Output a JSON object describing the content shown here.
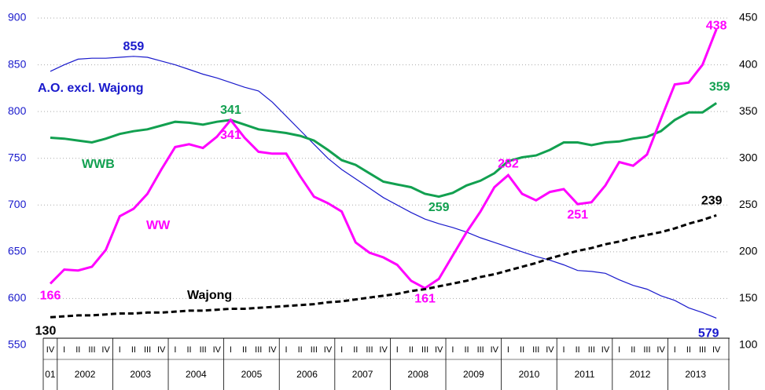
{
  "chart_data": {
    "type": "line",
    "categories": [
      "IV",
      "I",
      "II",
      "III",
      "IV",
      "I",
      "II",
      "III",
      "IV",
      "I",
      "II",
      "III",
      "IV",
      "I",
      "II",
      "III",
      "IV",
      "I",
      "II",
      "III",
      "IV",
      "I",
      "II",
      "III",
      "IV",
      "I",
      "II",
      "III",
      "IV",
      "I",
      "II",
      "III",
      "IV",
      "I",
      "II",
      "III",
      "IV",
      "I",
      "II",
      "III",
      "IV",
      "I",
      "II",
      "III",
      "IV",
      "I",
      "II",
      "III",
      "IV"
    ],
    "year_labels": [
      "01",
      "2002",
      "2003",
      "2004",
      "2005",
      "2006",
      "2007",
      "2008",
      "2009",
      "2010",
      "2011",
      "2012",
      "2013"
    ],
    "ylim": [
      550,
      900
    ],
    "yticks": [
      550,
      600,
      650,
      700,
      750,
      800,
      850,
      900
    ],
    "y2lim": [
      100,
      450
    ],
    "y2ticks": [
      100,
      150,
      200,
      250,
      300,
      350,
      400,
      450
    ],
    "grid": true,
    "series": [
      {
        "name": "A.O. excl. Wajong",
        "color": "#1a1acc",
        "axis": "y",
        "values": [
          843,
          850,
          856,
          857,
          857,
          858,
          859,
          858,
          854,
          850,
          845,
          840,
          836,
          831,
          826,
          822,
          810,
          795,
          780,
          765,
          750,
          738,
          728,
          718,
          708,
          700,
          692,
          685,
          680,
          676,
          671,
          665,
          660,
          655,
          650,
          645,
          641,
          636,
          630,
          629,
          627,
          620,
          614,
          610,
          603,
          598,
          590,
          585,
          579
        ]
      },
      {
        "name": "WWB",
        "color": "#12a050",
        "axis": "y2",
        "values": [
          322,
          321,
          319,
          317,
          321,
          326,
          329,
          331,
          335,
          339,
          338,
          336,
          339,
          341,
          336,
          331,
          329,
          327,
          324,
          319,
          309,
          298,
          293,
          284,
          275,
          272,
          269,
          262,
          259,
          263,
          271,
          276,
          284,
          297,
          301,
          303,
          309,
          317,
          317,
          314,
          317,
          318,
          321,
          323,
          329,
          341,
          349,
          349,
          359
        ]
      },
      {
        "name": "WW",
        "color": "#ff00ff",
        "axis": "y2",
        "values": [
          166,
          181,
          180,
          184,
          202,
          238,
          246,
          262,
          288,
          312,
          315,
          311,
          323,
          341,
          322,
          307,
          305,
          305,
          281,
          259,
          252,
          243,
          210,
          199,
          194,
          186,
          169,
          161,
          171,
          196,
          221,
          243,
          269,
          282,
          262,
          255,
          264,
          267,
          251,
          253,
          271,
          296,
          292,
          304,
          342,
          379,
          381,
          400,
          438
        ]
      },
      {
        "name": "Wajong",
        "color": "#000000",
        "axis": "y2",
        "dashed": true,
        "values": [
          130,
          131,
          132,
          132,
          133,
          134,
          134,
          135,
          135,
          136,
          137,
          137,
          138,
          139,
          139,
          140,
          141,
          142,
          143,
          144,
          146,
          147,
          149,
          151,
          153,
          155,
          158,
          160,
          163,
          166,
          169,
          173,
          176,
          180,
          184,
          188,
          193,
          197,
          201,
          204,
          208,
          211,
          215,
          218,
          221,
          225,
          230,
          234,
          239
        ]
      }
    ]
  }
}
